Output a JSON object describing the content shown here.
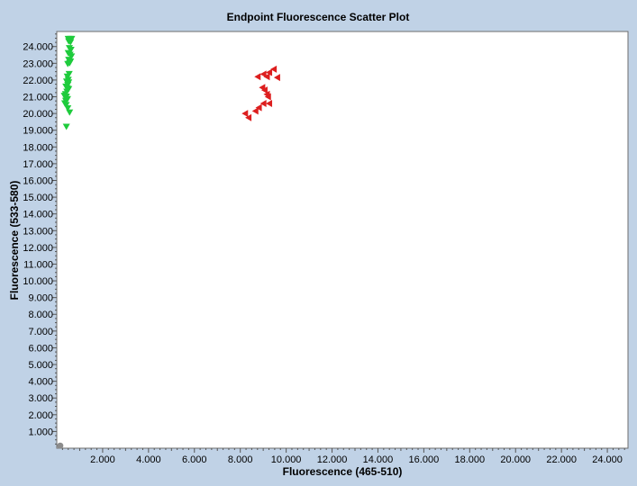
{
  "chart_data": {
    "type": "scatter",
    "title": "Endpoint Fluorescence Scatter Plot",
    "xlabel": "Fluorescence (465-510)",
    "ylabel": "Fluorescence (533-580)",
    "xlim": [
      0,
      24900
    ],
    "ylim": [
      0,
      24900
    ],
    "x_ticks": [
      2000,
      4000,
      6000,
      8000,
      10000,
      12000,
      14000,
      16000,
      18000,
      20000,
      22000,
      24000
    ],
    "x_tick_labels": [
      "2.000",
      "4.000",
      "6.000",
      "8.000",
      "10.000",
      "12.000",
      "14.000",
      "16.000",
      "18.000",
      "20.000",
      "22.000",
      "24.000"
    ],
    "y_ticks": [
      1000,
      2000,
      3000,
      4000,
      5000,
      6000,
      7000,
      8000,
      9000,
      10000,
      11000,
      12000,
      13000,
      14000,
      15000,
      16000,
      17000,
      18000,
      19000,
      20000,
      21000,
      22000,
      23000,
      24000
    ],
    "y_tick_labels": [
      "1.000",
      "2.000",
      "3.000",
      "4.000",
      "5.000",
      "6.000",
      "7.000",
      "8.000",
      "9.000",
      "10.000",
      "11.000",
      "12.000",
      "13.000",
      "14.000",
      "15.000",
      "16.000",
      "17.000",
      "18.000",
      "19.000",
      "20.000",
      "21.000",
      "22.000",
      "23.000",
      "24.000"
    ],
    "grid": false,
    "legend": "none",
    "series": [
      {
        "color": "#1ecb3c",
        "marker": "triangle-down",
        "points": [
          [
            500,
            24450
          ],
          [
            580,
            24450
          ],
          [
            650,
            24450
          ],
          [
            520,
            24300
          ],
          [
            600,
            24250
          ],
          [
            550,
            23900
          ],
          [
            620,
            23800
          ],
          [
            500,
            23600
          ],
          [
            580,
            23500
          ],
          [
            640,
            23400
          ],
          [
            520,
            23200
          ],
          [
            600,
            23100
          ],
          [
            560,
            23000
          ],
          [
            480,
            22950
          ],
          [
            540,
            22350
          ],
          [
            460,
            22200
          ],
          [
            500,
            22000
          ],
          [
            430,
            21900
          ],
          [
            520,
            21850
          ],
          [
            480,
            21700
          ],
          [
            400,
            21600
          ],
          [
            460,
            21500
          ],
          [
            520,
            21450
          ],
          [
            440,
            21300
          ],
          [
            380,
            21150
          ],
          [
            330,
            21050
          ],
          [
            420,
            21000
          ],
          [
            470,
            20850
          ],
          [
            390,
            20750
          ],
          [
            350,
            20600
          ],
          [
            410,
            20500
          ],
          [
            480,
            20300
          ],
          [
            560,
            20050
          ],
          [
            420,
            19200
          ]
        ]
      },
      {
        "color": "#dd1f1f",
        "marker": "triangle-left",
        "points": [
          [
            9450,
            22650
          ],
          [
            9250,
            22450
          ],
          [
            9000,
            22350
          ],
          [
            8750,
            22200
          ],
          [
            9150,
            22200
          ],
          [
            9600,
            22150
          ],
          [
            8950,
            21550
          ],
          [
            9050,
            21400
          ],
          [
            9150,
            21150
          ],
          [
            9200,
            21000
          ],
          [
            9250,
            20600
          ],
          [
            9000,
            20600
          ],
          [
            8800,
            20350
          ],
          [
            8650,
            20150
          ],
          [
            8200,
            20000
          ],
          [
            8350,
            19750
          ]
        ]
      },
      {
        "color": "#8c8c8c",
        "marker": "circle",
        "points": [
          [
            150,
            150
          ]
        ]
      }
    ]
  }
}
